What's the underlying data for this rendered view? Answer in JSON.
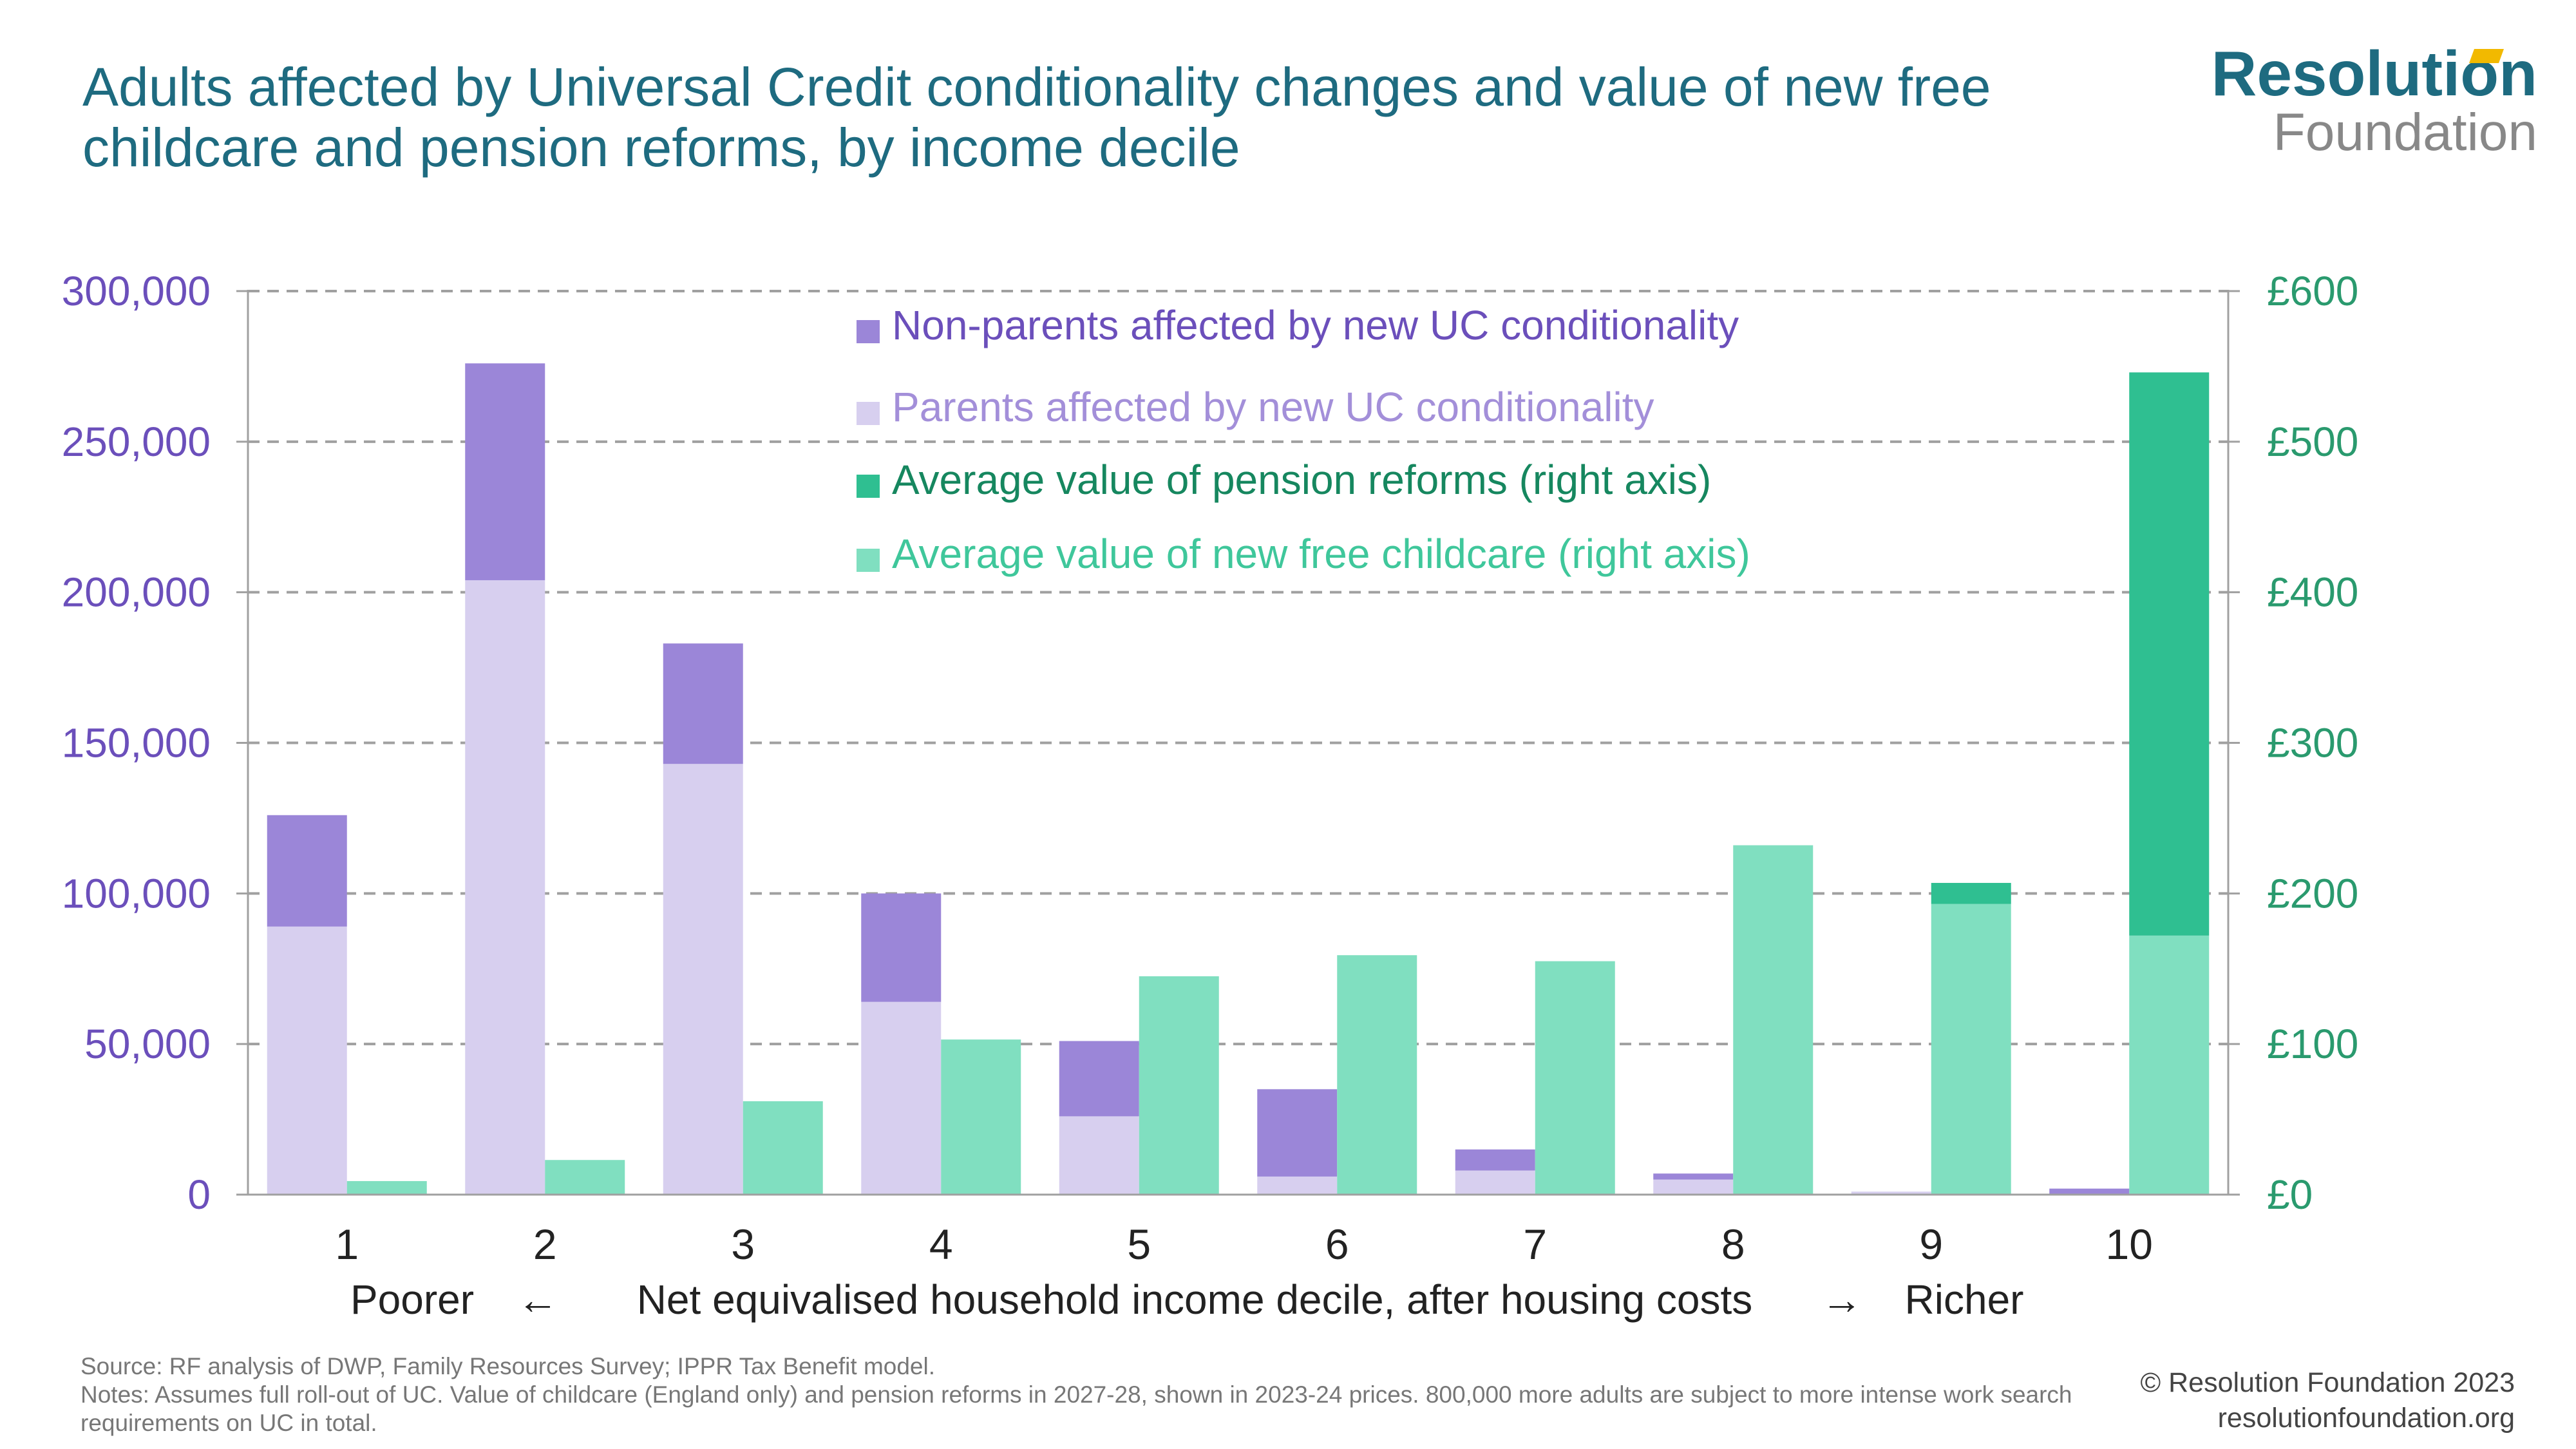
{
  "title": "Adults affected by Universal Credit conditionality changes and value of new free childcare and pension reforms, by income decile",
  "logo": {
    "line1": "Resolution",
    "line2": "Foundation"
  },
  "footer": {
    "source": "Source:  RF analysis of DWP, Family Resources Survey; IPPR Tax Benefit model.",
    "notes": "Notes: Assumes full roll-out of UC. Value of childcare (England only) and pension reforms in 2027-28, shown in 2023-24 prices. 800,000 more adults are subject to more intense work search requirements on UC in total.",
    "copyright": "© Resolution Foundation 2023",
    "website": "resolutionfoundation.org"
  },
  "colors": {
    "non_parents": "#9b86d8",
    "parents": "#d7cfef",
    "pension": "#2fbf91",
    "childcare": "#80dfc0",
    "left_axis": "#6b4fbb",
    "right_axis": "#2a9a6e",
    "grid": "#a0a0a0"
  },
  "chart_data": {
    "type": "bar",
    "categories": [
      "1",
      "2",
      "3",
      "4",
      "5",
      "6",
      "7",
      "8",
      "9",
      "10"
    ],
    "xlabel": {
      "left": "Poorer",
      "left_arrow": "←",
      "middle": "Net equivalised household income decile, after housing costs",
      "right_arrow": "→",
      "right": "Richer"
    },
    "left_axis": {
      "ylim": [
        0,
        300000
      ],
      "ticks": [
        "0",
        "50,000",
        "100,000",
        "150,000",
        "200,000",
        "250,000",
        "300,000"
      ]
    },
    "right_axis": {
      "ylim": [
        0,
        600
      ],
      "ticks": [
        "£0",
        "£100",
        "£200",
        "£300",
        "£400",
        "£500",
        "£600"
      ]
    },
    "series": [
      {
        "name": "Non-parents affected by new UC conditionality",
        "axis": "left",
        "stack": "uc",
        "values": [
          37000,
          72000,
          40000,
          36000,
          25000,
          29000,
          7000,
          2000,
          0,
          2000
        ]
      },
      {
        "name": "Parents affected by new UC conditionality",
        "axis": "left",
        "stack": "uc",
        "values": [
          89000,
          204000,
          143000,
          64000,
          26000,
          6000,
          8000,
          5000,
          1000,
          0
        ]
      },
      {
        "name": "Average value of pension reforms (right axis)",
        "axis": "right",
        "stack": "value",
        "values": [
          0,
          0,
          0,
          0,
          0,
          0,
          0,
          0,
          14,
          374
        ]
      },
      {
        "name": "Average value of new free childcare (right axis)",
        "axis": "right",
        "stack": "value",
        "values": [
          9,
          23,
          62,
          103,
          145,
          159,
          155,
          232,
          193,
          172
        ]
      }
    ],
    "legend_position": "top-center",
    "grid": true
  }
}
